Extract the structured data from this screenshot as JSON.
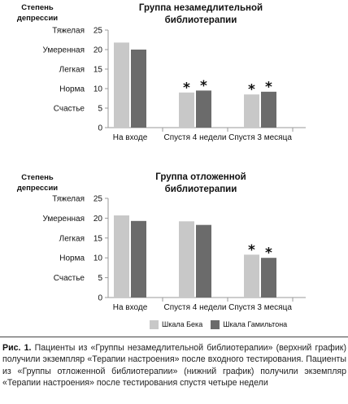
{
  "chart_data": [
    {
      "type": "bar",
      "title_lines": [
        "Группа незамедлительной",
        "библиотерапии"
      ],
      "ylabel_lines": [
        "Степень",
        "депрессии"
      ],
      "y_ticks": [
        0,
        5,
        10,
        15,
        20,
        25
      ],
      "ylim": [
        0,
        25
      ],
      "y_category_labels": [
        {
          "label": "Тяжелая",
          "y": 25
        },
        {
          "label": "Умеренная",
          "y": 20
        },
        {
          "label": "Легкая",
          "y": 15
        },
        {
          "label": "Норма",
          "y": 10
        },
        {
          "label": "Счастье",
          "y": 5
        }
      ],
      "categories": [
        "На входе",
        "Спустя 4 недели",
        "Спустя 3 месяца"
      ],
      "series": [
        {
          "name": "Шкала Бека",
          "values": [
            21.8,
            9.0,
            8.5
          ]
        },
        {
          "name": "Шкала Гамильтона",
          "values": [
            20.0,
            9.5,
            9.2
          ]
        }
      ],
      "significance": [
        [
          false,
          false
        ],
        [
          true,
          true
        ],
        [
          true,
          true
        ]
      ],
      "significance_marker": "*",
      "grid": false
    },
    {
      "type": "bar",
      "title_lines": [
        "Группа отложенной",
        "библиотерапии"
      ],
      "ylabel_lines": [
        "Степень",
        "депрессии"
      ],
      "y_ticks": [
        0,
        5,
        10,
        15,
        20,
        25
      ],
      "ylim": [
        0,
        25
      ],
      "y_category_labels": [
        {
          "label": "Тяжелая",
          "y": 25
        },
        {
          "label": "Умеренная",
          "y": 20
        },
        {
          "label": "Легкая",
          "y": 15
        },
        {
          "label": "Норма",
          "y": 10
        },
        {
          "label": "Счастье",
          "y": 5
        }
      ],
      "categories": [
        "На входе",
        "Спустя 4 недели",
        "Спустя 3 месяца"
      ],
      "series": [
        {
          "name": "Шкала Бека",
          "values": [
            20.7,
            19.2,
            10.8
          ]
        },
        {
          "name": "Шкала Гамильтона",
          "values": [
            19.3,
            18.3,
            10.0
          ]
        }
      ],
      "significance": [
        [
          false,
          false
        ],
        [
          false,
          false
        ],
        [
          true,
          true
        ]
      ],
      "significance_marker": "*",
      "grid": false
    }
  ],
  "legend": {
    "placement": "bottom-center",
    "items": [
      {
        "label": "Шкала Бека",
        "color": "#c8c8c8"
      },
      {
        "label": "Шкала Гамильтона",
        "color": "#6b6b6b"
      }
    ]
  },
  "colors": {
    "beck": "#c8c8c8",
    "hamilton": "#6b6b6b",
    "axis": "#9a9a9a"
  },
  "caption": {
    "prefix": "Рис. 1.",
    "text": "Пациенты из «Группы незамедлительной библиотерапии» (верхний график) получили экземпляр «Терапии настроения» после входного тестирования. Пациенты из «Группы отложенной библиотерапии» (нижний график) получили экземпляр «Терапии настроения» после тестирования спустя четыре недели"
  }
}
